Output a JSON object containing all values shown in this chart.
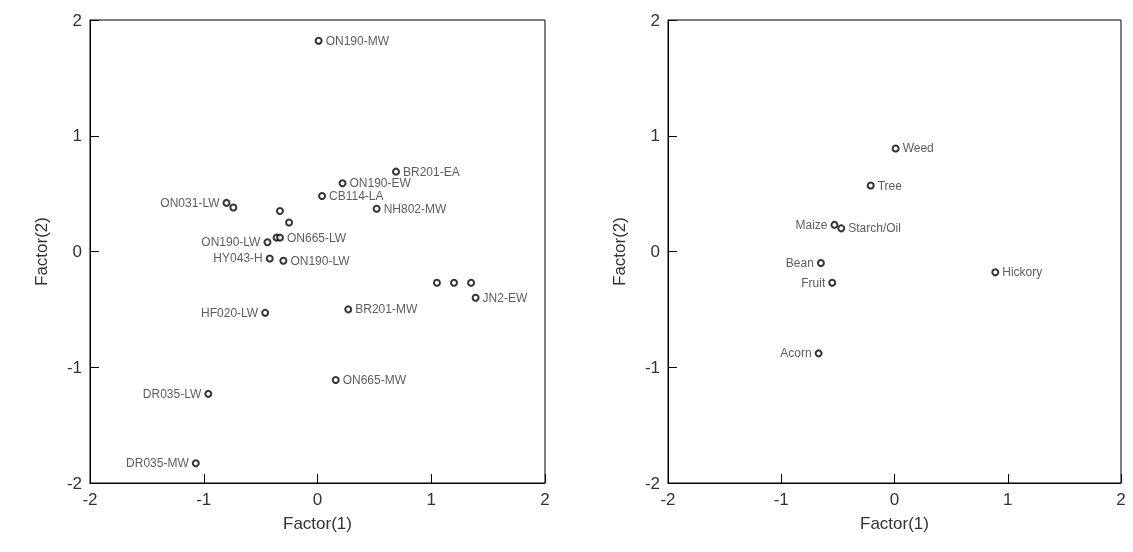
{
  "chart_data": [
    {
      "type": "scatter",
      "xlabel": "Factor(1)",
      "ylabel": "Factor(2)",
      "xlim": [
        -2,
        2
      ],
      "ylim": [
        -2,
        2
      ],
      "xticks": [
        -2,
        -1,
        0,
        1,
        2
      ],
      "yticks": [
        -2,
        -1,
        0,
        1,
        2
      ],
      "grid": false,
      "marker": "circle",
      "color": "#000000",
      "x": [
        0.01,
        0.69,
        0.22,
        0.04,
        0.52,
        -0.8,
        -0.74,
        -0.33,
        -0.25,
        -0.44,
        -0.36,
        -0.33,
        -0.42,
        -0.3,
        1.05,
        1.2,
        1.35,
        1.39,
        -0.46,
        0.27,
        0.16,
        -0.96,
        -1.07
      ],
      "values": [
        1.82,
        0.69,
        0.59,
        0.48,
        0.37,
        0.42,
        0.38,
        0.35,
        0.25,
        0.08,
        0.12,
        0.12,
        -0.06,
        -0.08,
        -0.27,
        -0.27,
        -0.27,
        -0.4,
        -0.53,
        -0.5,
        -1.11,
        -1.23,
        -1.83
      ],
      "value_labels": [
        "ON190-MW",
        "BR201-EA",
        "ON190-EW",
        "CB114-LA",
        "NH802-MW",
        "ON031-LW",
        null,
        null,
        null,
        "ON190-LW",
        null,
        "ON665-LW",
        "HY043-H",
        "ON190-LW",
        null,
        null,
        null,
        "JN2-EW",
        "HF020-LW",
        "BR201-MW",
        "ON665-MW",
        "DR035-LW",
        "DR035-MW"
      ]
    },
    {
      "type": "scatter",
      "xlabel": "Factor(1)",
      "ylabel": "Factor(2)",
      "xlim": [
        -2,
        2
      ],
      "ylim": [
        -2,
        2
      ],
      "xticks": [
        -2,
        -1,
        0,
        1,
        2
      ],
      "yticks": [
        -2,
        -1,
        0,
        1,
        2
      ],
      "grid": false,
      "marker": "circle",
      "color": "#000000",
      "x": [
        0.01,
        -0.21,
        -0.53,
        -0.47,
        -0.65,
        -0.55,
        -0.67,
        0.89
      ],
      "values": [
        0.89,
        0.57,
        0.23,
        0.2,
        -0.1,
        -0.27,
        -0.88,
        -0.18
      ],
      "value_labels": [
        "Weed",
        "Tree",
        "Maize",
        "Starch/Oil",
        "Bean",
        "Fruit",
        "Acorn",
        "Hickory"
      ]
    }
  ]
}
